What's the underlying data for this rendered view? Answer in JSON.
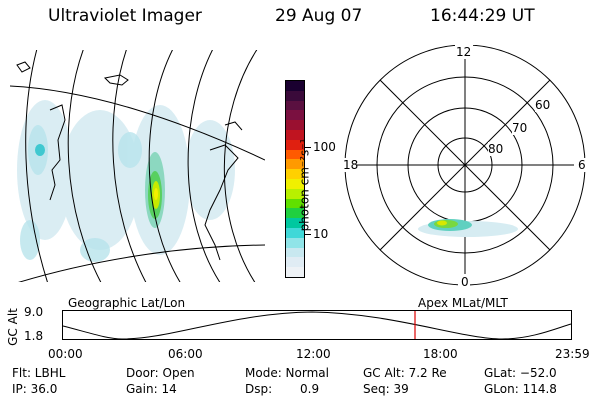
{
  "header": {
    "instrument": "Ultraviolet Imager",
    "date": "29 Aug 07",
    "time": "16:44:29 UT"
  },
  "colorbar": {
    "unit_label": "photon cm⁻²s⁻¹",
    "ticks": [
      "100",
      "10"
    ],
    "colors": [
      "#1a0030",
      "#3a0a3a",
      "#5a1040",
      "#7a1040",
      "#9a1030",
      "#c01420",
      "#e02010",
      "#ff5a00",
      "#ff9a00",
      "#ffd000",
      "#f0f000",
      "#b8f000",
      "#60e000",
      "#20d040",
      "#00c8a0",
      "#40d8d8",
      "#90e4e8",
      "#c8e8f0",
      "#e0ecf4",
      "#eef2f6"
    ]
  },
  "polar_plot": {
    "labels": {
      "top": "12",
      "left": "18",
      "right": "6",
      "bottom": "0"
    },
    "rings": [
      "60",
      "70",
      "80"
    ]
  },
  "timeline": {
    "left_label": "Geographic Lat/Lon",
    "right_label": "Apex MLat/MLT",
    "axis_title": "GC Alt",
    "y_ticks": [
      "9.0",
      "1.8"
    ],
    "x_ticks": [
      "00:00",
      "06:00",
      "12:00",
      "18:00",
      "23:59"
    ],
    "marker_color": "#dd0000"
  },
  "footer": {
    "flt": "Flt: LBHL",
    "ip": "IP: 36.0",
    "door": "Door: Open",
    "gain": "Gain: 14",
    "mode": "Mode: Normal",
    "dsp_label": "Dsp:",
    "dsp_value": "0.9",
    "gc_alt": "GC Alt: 7.2 Re",
    "seq": "Seq: 39",
    "glat": "GLat: −52.0",
    "glon": "GLon: 114.8"
  }
}
